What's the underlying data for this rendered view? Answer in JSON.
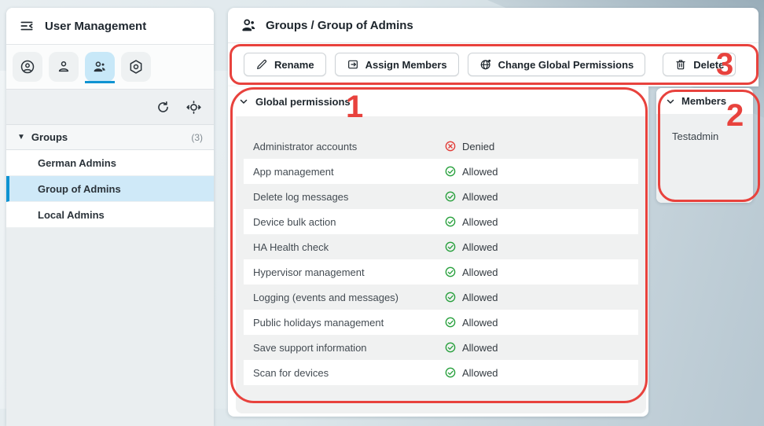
{
  "sidebar": {
    "title": "User Management",
    "tabs": [
      {
        "name": "account-circle",
        "active": false
      },
      {
        "name": "user",
        "active": false
      },
      {
        "name": "user-group",
        "active": true
      },
      {
        "name": "roles-hexagon",
        "active": false
      }
    ],
    "tree": {
      "header": "Groups",
      "count": "(3)",
      "items": [
        {
          "label": "German Admins",
          "selected": false
        },
        {
          "label": "Group of Admins",
          "selected": true
        },
        {
          "label": "Local Admins",
          "selected": false
        }
      ]
    }
  },
  "main": {
    "breadcrumb": "Groups / Group of Admins",
    "toolbar": [
      {
        "label": "Rename",
        "icon": "pencil-icon"
      },
      {
        "label": "Assign Members",
        "icon": "assign-icon"
      },
      {
        "label": "Change Global Permissions",
        "icon": "globe-icon"
      },
      {
        "label": "Delete",
        "icon": "trash-icon"
      }
    ],
    "permissions": {
      "title": "Global permissions",
      "rows": [
        {
          "label": "Administrator accounts",
          "status": "Denied"
        },
        {
          "label": "App management",
          "status": "Allowed"
        },
        {
          "label": "Delete log messages",
          "status": "Allowed"
        },
        {
          "label": "Device bulk action",
          "status": "Allowed"
        },
        {
          "label": "HA Health check",
          "status": "Allowed"
        },
        {
          "label": "Hypervisor management",
          "status": "Allowed"
        },
        {
          "label": "Logging (events and messages)",
          "status": "Allowed"
        },
        {
          "label": "Public holidays management",
          "status": "Allowed"
        },
        {
          "label": "Save support information",
          "status": "Allowed"
        },
        {
          "label": "Scan for devices",
          "status": "Allowed"
        }
      ]
    },
    "members": {
      "title": "Members",
      "items": [
        "Testadmin"
      ]
    }
  },
  "annotations": {
    "labels": [
      "1",
      "2",
      "3"
    ],
    "color": "#e8423d"
  },
  "colors": {
    "accent_blue": "#0f93d2",
    "selected_bg": "#cfe9f8",
    "denied_red": "#e23b36",
    "allowed_green": "#27a03c",
    "annotation_red": "#e8423d"
  }
}
